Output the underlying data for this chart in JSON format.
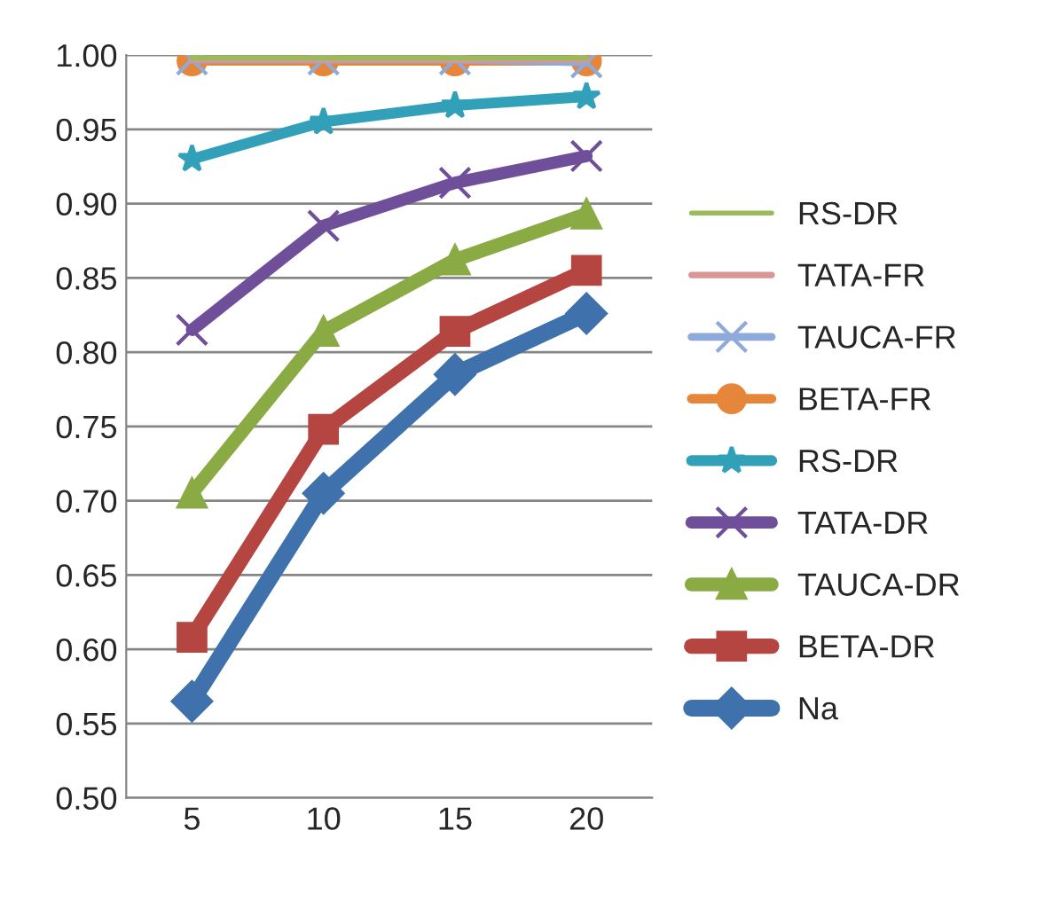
{
  "chart_data": {
    "type": "line",
    "categories": [
      "5",
      "10",
      "15",
      "20"
    ],
    "series": [
      {
        "name": "RS-DR",
        "color": "#9bbb59",
        "marker": "none",
        "values": [
          0.998,
          0.998,
          0.998,
          0.998
        ]
      },
      {
        "name": "TATA-FR",
        "color": "#d99694",
        "marker": "none",
        "values": [
          0.997,
          0.997,
          0.997,
          0.997
        ]
      },
      {
        "name": "TAUCA-FR",
        "color": "#8eaadb",
        "marker": "cross",
        "values": [
          0.997,
          0.997,
          0.997,
          0.995
        ]
      },
      {
        "name": "BETA-FR",
        "color": "#e6863a",
        "marker": "circle",
        "values": [
          0.996,
          0.996,
          0.996,
          0.996
        ]
      },
      {
        "name": "RS-DR",
        "color": "#31a0b8",
        "marker": "star",
        "values": [
          0.93,
          0.955,
          0.966,
          0.972
        ]
      },
      {
        "name": "TATA-DR",
        "color": "#6f4f9a",
        "marker": "cross",
        "values": [
          0.815,
          0.885,
          0.914,
          0.932
        ]
      },
      {
        "name": "TAUCA-DR",
        "color": "#8aab44",
        "marker": "triangle",
        "values": [
          0.705,
          0.814,
          0.862,
          0.893
        ]
      },
      {
        "name": "BETA-DR",
        "color": "#b44540",
        "marker": "square",
        "values": [
          0.608,
          0.748,
          0.814,
          0.855
        ]
      },
      {
        "name": "Na",
        "color": "#3f72ac",
        "marker": "diamond",
        "values": [
          0.565,
          0.705,
          0.785,
          0.826
        ]
      }
    ],
    "ylim": [
      0.5,
      1.0
    ],
    "yticks": [
      {
        "value": 0.5,
        "label": "0.50"
      },
      {
        "value": 0.55,
        "label": "0.55"
      },
      {
        "value": 0.6,
        "label": "0.60"
      },
      {
        "value": 0.65,
        "label": "0.65"
      },
      {
        "value": 0.7,
        "label": "0.70"
      },
      {
        "value": 0.75,
        "label": "0.75"
      },
      {
        "value": 0.8,
        "label": "0.80"
      },
      {
        "value": 0.85,
        "label": "0.85"
      },
      {
        "value": 0.9,
        "label": "0.90"
      },
      {
        "value": 0.95,
        "label": "0.95"
      },
      {
        "value": 1.0,
        "label": "1.00"
      }
    ],
    "grid": "y",
    "legend": "right",
    "line_style": "solid"
  }
}
